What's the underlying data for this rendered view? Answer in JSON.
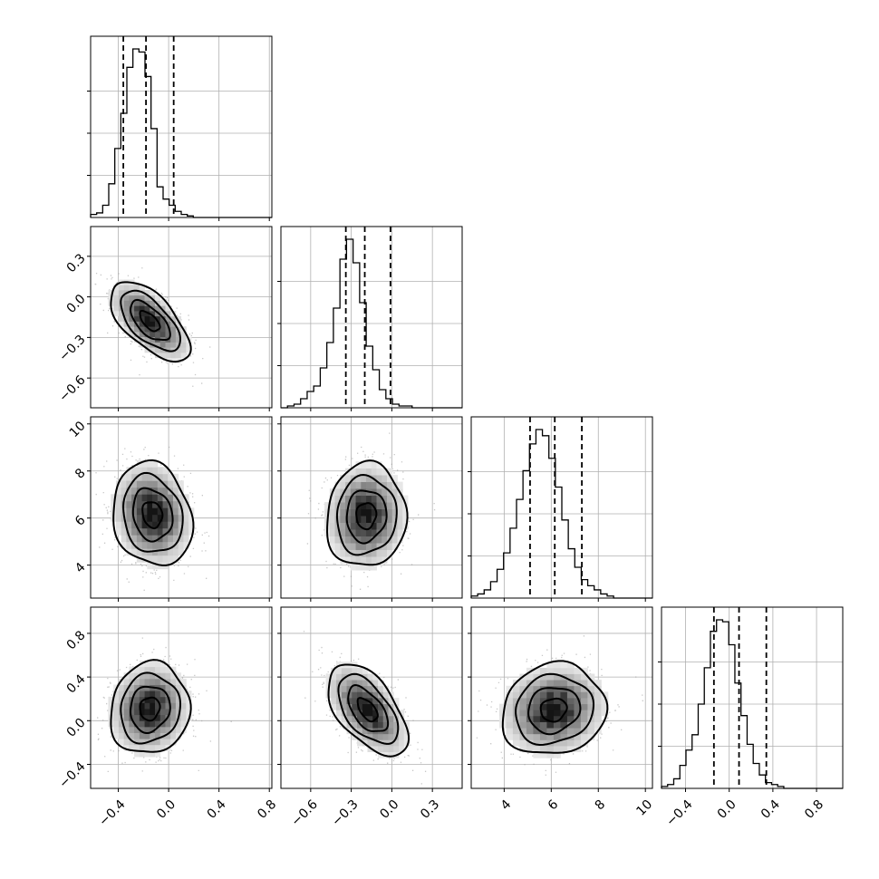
{
  "chart_data": {
    "type": "corner",
    "params": [
      {
        "id": "p0",
        "range": [
          -0.62,
          0.82
        ],
        "ticks": [
          -0.4,
          0.0,
          0.4,
          0.8
        ],
        "tick_labels": [
          "−0.4",
          "0.0",
          "0.4",
          "0.8"
        ]
      },
      {
        "id": "p1",
        "range": [
          -0.82,
          0.52
        ],
        "ticks": [
          -0.6,
          -0.3,
          0.0,
          0.3
        ],
        "tick_labels": [
          "−0.6",
          "−0.3",
          "0.0",
          "0.3"
        ]
      },
      {
        "id": "p2",
        "range": [
          2.6,
          10.3
        ],
        "ticks": [
          4,
          6,
          8,
          10
        ],
        "tick_labels": [
          "4",
          "6",
          "8",
          "10"
        ]
      },
      {
        "id": "p3",
        "range": [
          -0.62,
          1.04
        ],
        "ticks": [
          -0.4,
          0.0,
          0.4,
          0.8
        ],
        "tick_labels": [
          "−0.4",
          "0.0",
          "0.4",
          "0.8"
        ]
      }
    ],
    "marginals": [
      {
        "param": "p0",
        "bins_start": -0.62,
        "bin_width": 0.048,
        "counts": [
          2,
          3,
          8,
          22,
          45,
          68,
          98,
          110,
          108,
          92,
          58,
          20,
          12,
          8,
          4,
          2,
          1,
          0,
          0,
          0,
          0,
          0,
          0,
          0,
          0,
          0,
          0,
          0,
          0,
          0
        ],
        "quantiles": [
          -0.36,
          -0.18,
          0.04
        ]
      },
      {
        "param": "p1",
        "bins_start": -0.82,
        "bin_width": 0.0485,
        "counts": [
          0,
          1,
          2,
          5,
          9,
          12,
          22,
          36,
          55,
          82,
          93,
          80,
          58,
          34,
          21,
          10,
          5,
          2,
          1,
          1,
          0,
          0,
          0,
          0,
          0,
          0,
          0,
          0
        ],
        "quantiles": [
          -0.34,
          -0.2,
          -0.01
        ]
      },
      {
        "param": "p2",
        "bins_start": 2.6,
        "bin_width": 0.275,
        "counts": [
          1,
          2,
          4,
          8,
          14,
          22,
          34,
          48,
          62,
          75,
          82,
          79,
          68,
          54,
          38,
          24,
          15,
          9,
          6,
          4,
          2,
          1,
          0,
          0,
          0,
          0,
          0,
          0
        ],
        "quantiles": [
          5.1,
          6.15,
          7.3
        ]
      },
      {
        "param": "p3",
        "bins_start": -0.62,
        "bin_width": 0.056,
        "counts": [
          1,
          2,
          5,
          12,
          20,
          28,
          44,
          63,
          82,
          88,
          87,
          75,
          55,
          38,
          23,
          13,
          7,
          3,
          2,
          1,
          0,
          0,
          0,
          0,
          0,
          0,
          0,
          0,
          0,
          0
        ],
        "quantiles": [
          -0.14,
          0.09,
          0.34
        ]
      }
    ],
    "pairs": [
      {
        "x": "p0",
        "y": "p1",
        "mean": [
          -0.15,
          -0.18
        ],
        "std": [
          0.15,
          0.14
        ],
        "corr": -0.62
      },
      {
        "x": "p0",
        "y": "p2",
        "mean": [
          -0.13,
          6.15
        ],
        "std": [
          0.15,
          1.05
        ],
        "corr": -0.15
      },
      {
        "x": "p1",
        "y": "p2",
        "mean": [
          -0.19,
          6.1
        ],
        "std": [
          0.14,
          1.05
        ],
        "corr": 0.05
      },
      {
        "x": "p0",
        "y": "p3",
        "mean": [
          -0.15,
          0.11
        ],
        "std": [
          0.15,
          0.2
        ],
        "corr": 0.08
      },
      {
        "x": "p1",
        "y": "p3",
        "mean": [
          -0.18,
          0.1
        ],
        "std": [
          0.14,
          0.2
        ],
        "corr": -0.55
      },
      {
        "x": "p2",
        "y": "p3",
        "mean": [
          6.1,
          0.1
        ],
        "std": [
          1.05,
          0.2
        ],
        "corr": 0.1
      }
    ],
    "contour_levels_sigma": [
      0.5,
      1.0,
      1.5,
      2.0
    ],
    "grid": true,
    "title": "",
    "xlabel": "",
    "ylabel": ""
  }
}
